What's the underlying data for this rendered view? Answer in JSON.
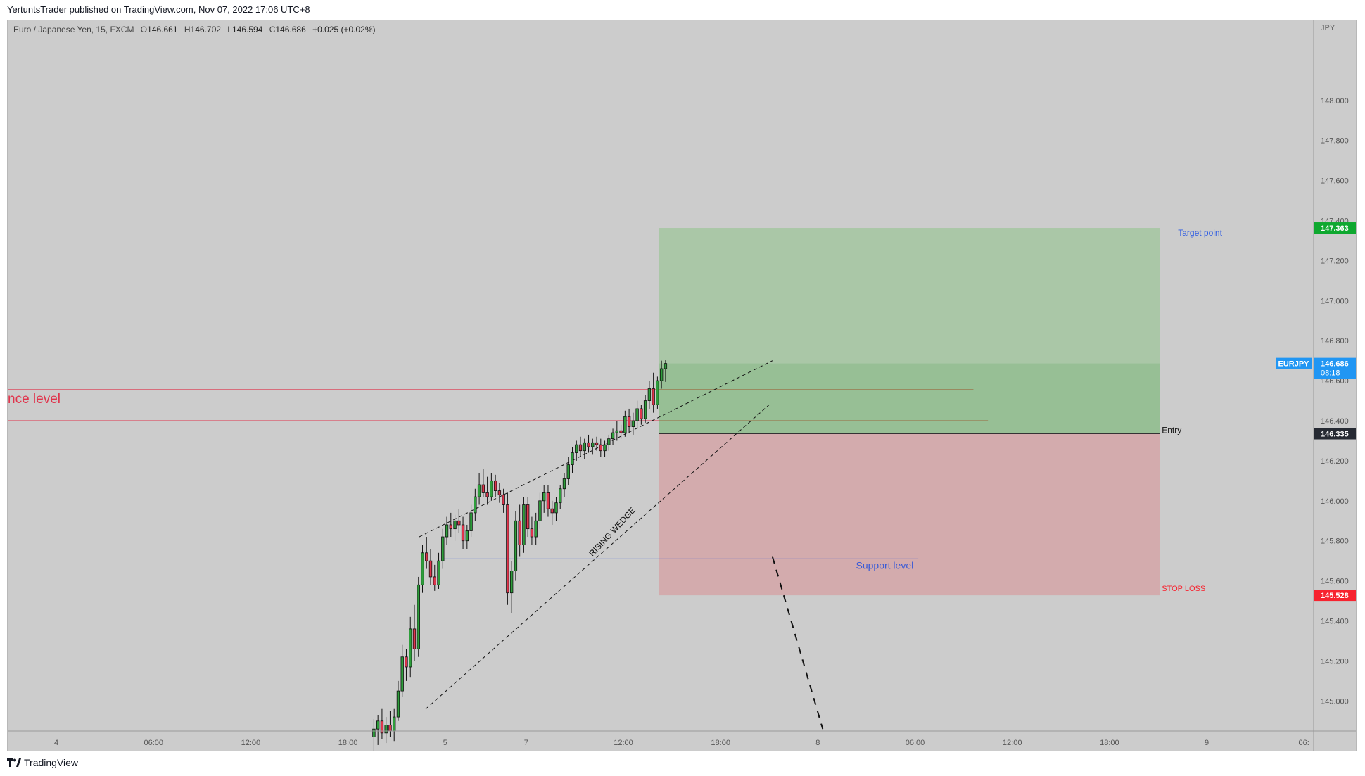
{
  "header": {
    "published_text": "YertuntsTrader published on TradingView.com, Nov 07, 2022 17:06 UTC+8"
  },
  "legend": {
    "symbol_text": "Euro / Japanese Yen, 15, FXCM",
    "open_label": "O",
    "open": "146.661",
    "high_label": "H",
    "high": "146.702",
    "low_label": "L",
    "low": "146.594",
    "close_label": "C",
    "close": "146.686",
    "change": "+0.025 (+0.02%)"
  },
  "footer": {
    "brand": "TradingView"
  },
  "colors": {
    "background": "#cccccc",
    "bull": "#2e9e3b",
    "bear": "#e0344c",
    "target_zone": "#a3c6a0",
    "stop_zone": "#d3a5a7",
    "target_tag": "#0ea82f",
    "stop_tag": "#f7232f",
    "price_tag": "#2196f3",
    "entry_tag": "#262a33",
    "resistance": "#e0344c",
    "support": "#3b5bd6"
  },
  "chart_data": {
    "type": "candlestick",
    "symbol": "EURJPY",
    "timeframe": "15",
    "currency_label": "JPY",
    "y_axis": {
      "range": [
        144.85,
        148.4
      ],
      "ticks": [
        "148.000",
        "147.800",
        "147.600",
        "147.400",
        "147.200",
        "147.000",
        "146.800",
        "146.600",
        "146.400",
        "146.200",
        "146.000",
        "145.800",
        "145.600",
        "145.400",
        "145.200",
        "145.000"
      ]
    },
    "x_axis": {
      "ticks": [
        {
          "label": "4",
          "t": 0
        },
        {
          "label": "06:00",
          "t": 6
        },
        {
          "label": "12:00",
          "t": 12
        },
        {
          "label": "18:00",
          "t": 18
        },
        {
          "label": "5",
          "t": 24
        },
        {
          "label": "7",
          "t": 29
        },
        {
          "label": "12:00",
          "t": 35
        },
        {
          "label": "18:00",
          "t": 41
        },
        {
          "label": "8",
          "t": 47
        },
        {
          "label": "06:00",
          "t": 53
        },
        {
          "label": "12:00",
          "t": 59
        },
        {
          "label": "18:00",
          "t": 65
        },
        {
          "label": "9",
          "t": 71
        },
        {
          "label": "06:",
          "t": 77
        }
      ],
      "range": [
        -3,
        77.6
      ]
    },
    "price_tags": {
      "current": {
        "symbol": "EURJPY",
        "value": 146.686,
        "label": "146.686",
        "countdown": "08:18"
      },
      "target": {
        "value": 147.363,
        "label": "147.363"
      },
      "entry": {
        "value": 146.335,
        "label": "146.335"
      },
      "stop": {
        "value": 145.528,
        "label": "145.528"
      }
    },
    "annotations": {
      "target_label": "Target point",
      "entry_label": "Entry",
      "stop_label": "STOP LOSS",
      "support_label": "Support level",
      "resistance_label": "nce level",
      "pattern_label": "RISING WEDGE"
    },
    "levels": {
      "resistance_upper": 146.555,
      "resistance_lower": 146.4,
      "support": 145.71
    },
    "position": {
      "t_start": 37.2,
      "t_end": 68.1,
      "target": 147.363,
      "entry": 146.335,
      "stop": 145.528
    },
    "wedge": {
      "upper": [
        [
          22.4,
          145.82
        ],
        [
          44.2,
          146.7
        ]
      ],
      "lower": [
        [
          22.8,
          144.96
        ],
        [
          44.0,
          146.48
        ]
      ]
    },
    "projection": [
      [
        44.2,
        145.72
      ],
      [
        47.3,
        144.86
      ]
    ],
    "candles": [
      [
        19.6,
        144.82,
        144.91,
        144.74,
        144.86
      ],
      [
        19.85,
        144.86,
        144.93,
        144.78,
        144.9
      ],
      [
        20.1,
        144.9,
        144.96,
        144.81,
        144.84
      ],
      [
        20.35,
        144.84,
        144.92,
        144.79,
        144.88
      ],
      [
        20.6,
        144.88,
        144.95,
        144.82,
        144.85
      ],
      [
        20.85,
        144.85,
        144.96,
        144.8,
        144.92
      ],
      [
        21.1,
        144.92,
        145.1,
        144.9,
        145.05
      ],
      [
        21.35,
        145.05,
        145.28,
        145.02,
        145.22
      ],
      [
        21.6,
        145.22,
        145.26,
        145.1,
        145.17
      ],
      [
        21.85,
        145.17,
        145.42,
        145.12,
        145.36
      ],
      [
        22.1,
        145.36,
        145.48,
        145.2,
        145.26
      ],
      [
        22.35,
        145.26,
        145.62,
        145.22,
        145.58
      ],
      [
        22.6,
        145.58,
        145.78,
        145.54,
        145.74
      ],
      [
        22.85,
        145.74,
        145.82,
        145.66,
        145.7
      ],
      [
        23.1,
        145.7,
        145.76,
        145.58,
        145.62
      ],
      [
        23.35,
        145.62,
        145.68,
        145.55,
        145.58
      ],
      [
        23.6,
        145.58,
        145.74,
        145.56,
        145.7
      ],
      [
        23.85,
        145.7,
        145.86,
        145.66,
        145.82
      ],
      [
        24.1,
        145.82,
        145.92,
        145.78,
        145.88
      ],
      [
        24.35,
        145.88,
        145.94,
        145.82,
        145.86
      ],
      [
        24.6,
        145.86,
        145.93,
        145.8,
        145.9
      ],
      [
        24.85,
        145.9,
        145.96,
        145.84,
        145.88
      ],
      [
        25.1,
        145.88,
        145.92,
        145.76,
        145.8
      ],
      [
        25.35,
        145.8,
        145.88,
        145.76,
        145.85
      ],
      [
        25.6,
        145.85,
        145.98,
        145.82,
        145.94
      ],
      [
        25.85,
        145.94,
        146.06,
        145.9,
        146.02
      ],
      [
        26.1,
        146.02,
        146.14,
        145.98,
        146.08
      ],
      [
        26.35,
        146.08,
        146.16,
        146.02,
        146.04
      ],
      [
        26.6,
        146.04,
        146.12,
        145.98,
        146.02
      ],
      [
        26.85,
        146.02,
        146.14,
        146.0,
        146.1
      ],
      [
        27.1,
        146.1,
        146.13,
        146.02,
        146.05
      ],
      [
        27.35,
        146.05,
        146.09,
        145.99,
        146.03
      ],
      [
        27.6,
        146.03,
        146.06,
        145.94,
        145.98
      ],
      [
        27.85,
        145.98,
        146.04,
        145.48,
        145.54
      ],
      [
        28.1,
        145.54,
        145.7,
        145.44,
        145.65
      ],
      [
        28.35,
        145.65,
        145.95,
        145.6,
        145.9
      ],
      [
        28.6,
        145.9,
        145.98,
        145.72,
        145.78
      ],
      [
        28.85,
        145.78,
        146.02,
        145.74,
        145.98
      ],
      [
        29.1,
        145.98,
        146.02,
        145.82,
        145.86
      ],
      [
        29.35,
        145.86,
        145.92,
        145.78,
        145.82
      ],
      [
        29.6,
        145.82,
        145.94,
        145.78,
        145.9
      ],
      [
        29.85,
        145.9,
        146.04,
        145.86,
        146.0
      ],
      [
        30.1,
        146.0,
        146.08,
        145.94,
        146.04
      ],
      [
        30.35,
        146.04,
        146.08,
        145.92,
        145.96
      ],
      [
        30.6,
        145.96,
        146.0,
        145.88,
        145.94
      ],
      [
        30.85,
        145.94,
        146.02,
        145.9,
        145.99
      ],
      [
        31.1,
        145.99,
        146.08,
        145.96,
        146.06
      ],
      [
        31.35,
        146.06,
        146.14,
        146.02,
        146.11
      ],
      [
        31.6,
        146.11,
        146.22,
        146.08,
        146.18
      ],
      [
        31.85,
        146.18,
        146.27,
        146.14,
        146.24
      ],
      [
        32.1,
        146.24,
        146.3,
        146.2,
        146.28
      ],
      [
        32.35,
        146.28,
        146.32,
        146.22,
        146.25
      ],
      [
        32.6,
        146.25,
        146.31,
        146.21,
        146.29
      ],
      [
        32.85,
        146.29,
        146.33,
        146.24,
        146.27
      ],
      [
        33.1,
        146.27,
        146.31,
        146.23,
        146.29
      ],
      [
        33.35,
        146.29,
        146.32,
        146.25,
        146.28
      ],
      [
        33.6,
        146.28,
        146.31,
        146.22,
        146.25
      ],
      [
        33.85,
        146.25,
        146.3,
        146.22,
        146.28
      ],
      [
        34.1,
        146.28,
        146.33,
        146.25,
        146.31
      ],
      [
        34.35,
        146.31,
        146.36,
        146.28,
        146.34
      ],
      [
        34.6,
        146.34,
        146.4,
        146.3,
        146.35
      ],
      [
        34.85,
        146.35,
        146.38,
        146.31,
        146.34
      ],
      [
        35.1,
        146.34,
        146.45,
        146.32,
        146.42
      ],
      [
        35.35,
        146.42,
        146.46,
        146.34,
        146.37
      ],
      [
        35.6,
        146.37,
        146.44,
        146.33,
        146.4
      ],
      [
        35.85,
        146.4,
        146.5,
        146.36,
        146.46
      ],
      [
        36.1,
        146.46,
        146.48,
        146.38,
        146.41
      ],
      [
        36.35,
        146.41,
        146.53,
        146.39,
        146.5
      ],
      [
        36.6,
        146.5,
        146.6,
        146.46,
        146.56
      ],
      [
        36.85,
        146.56,
        146.64,
        146.44,
        146.48
      ],
      [
        37.1,
        146.48,
        146.62,
        146.46,
        146.6
      ],
      [
        37.35,
        146.6,
        146.7,
        146.56,
        146.66
      ],
      [
        37.6,
        146.66,
        146.702,
        146.594,
        146.686
      ]
    ]
  }
}
